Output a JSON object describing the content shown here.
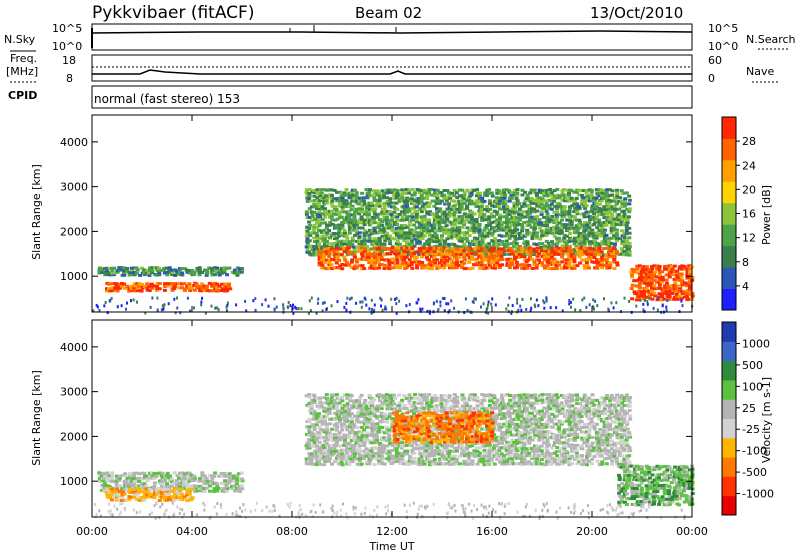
{
  "header": {
    "station": "Pykkvibaer (fitACF)",
    "beam": "Beam 02",
    "date": "13/Oct/2010"
  },
  "noise_panel": {
    "left_label": "N.Sky",
    "right_label": "N.Search",
    "left_ticks": [
      "10^5",
      "10^0"
    ],
    "right_ticks": [
      "10^5",
      "10^0"
    ]
  },
  "freq_panel": {
    "left_label_line1": "Freq.",
    "left_label_line2": "[MHz]",
    "right_label": "Nave",
    "left_ticks": [
      "18",
      "8"
    ],
    "right_ticks": [
      "60",
      "0"
    ]
  },
  "cpid": {
    "label": "CPID",
    "text": "normal (fast stereo) 153"
  },
  "colors": {
    "power_scale": [
      "#1e1eff",
      "#2b58b8",
      "#3a7f4e",
      "#4ea24a",
      "#8cc43c",
      "#ffd200",
      "#ffa000",
      "#ff6400",
      "#ff2800"
    ],
    "velocity_scale": [
      "#1e3cb0",
      "#3a66c8",
      "#2f8a3c",
      "#5cc040",
      "#b4b4b4",
      "#d2d2d2",
      "#ffb400",
      "#ff7800",
      "#ff3200",
      "#e60000"
    ]
  },
  "chart_data": [
    {
      "type": "heatmap",
      "panel": "power",
      "ylabel": "Slant Range [km]",
      "yticks": [
        "1000",
        "2000",
        "3000",
        "4000"
      ],
      "colorbar_label": "Power [dB]",
      "colorbar_ticks": [
        "4",
        "8",
        "12",
        "16",
        "20",
        "24",
        "28"
      ],
      "xlim": [
        0,
        24
      ],
      "ylim": [
        200,
        4600
      ],
      "bands": [
        {
          "x": [
            0.2,
            6.0
          ],
          "y": [
            1050,
            1250
          ],
          "value": 8
        },
        {
          "x": [
            0.5,
            5.5
          ],
          "y": [
            700,
            900
          ],
          "value": 26
        },
        {
          "x": [
            8.5,
            21.5
          ],
          "y": [
            1500,
            3000
          ],
          "value": 10
        },
        {
          "x": [
            9.0,
            21.0
          ],
          "y": [
            1200,
            1700
          ],
          "value": 25
        },
        {
          "x": [
            21.5,
            24.0
          ],
          "y": [
            500,
            1300
          ],
          "value": 27
        }
      ]
    },
    {
      "type": "heatmap",
      "panel": "velocity",
      "ylabel": "Slant Range [km]",
      "yticks": [
        "1000",
        "2000",
        "3000",
        "4000"
      ],
      "colorbar_label": "Velocity [m s-1]",
      "colorbar_ticks": [
        "1000",
        "500",
        "100",
        "25",
        "-25",
        "-100",
        "-500",
        "-1000"
      ],
      "xlim": [
        0,
        24
      ],
      "ylim": [
        200,
        4600
      ],
      "xticks": [
        "00:00",
        "04:00",
        "08:00",
        "12:00",
        "16:00",
        "20:00",
        "00:00"
      ],
      "xlabel": "Time UT",
      "bands": [
        {
          "x": [
            0.2,
            6.0
          ],
          "y": [
            800,
            1250
          ],
          "value": 0
        },
        {
          "x": [
            0.5,
            4.0
          ],
          "y": [
            600,
            900
          ],
          "value": -300
        },
        {
          "x": [
            8.5,
            21.5
          ],
          "y": [
            1400,
            3000
          ],
          "value": 0
        },
        {
          "x": [
            12.0,
            16.0
          ],
          "y": [
            1900,
            2600
          ],
          "value": -400
        },
        {
          "x": [
            21.0,
            24.0
          ],
          "y": [
            500,
            1400
          ],
          "value": 150
        }
      ]
    }
  ]
}
